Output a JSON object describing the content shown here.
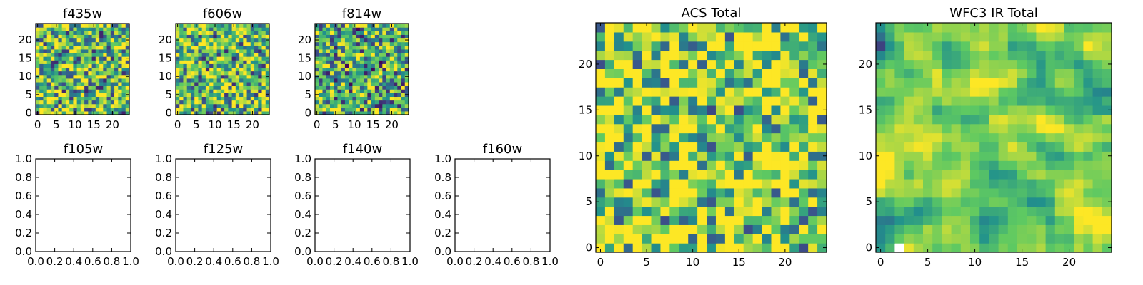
{
  "chart_data": {
    "type": "heatmap",
    "colormap": "viridis",
    "colormap_stops": [
      "#440154",
      "#3b528b",
      "#21918c",
      "#5ec962",
      "#fde725"
    ],
    "panels": [
      {
        "id": "f435w",
        "title": "f435w",
        "has_image": true,
        "grid_size": 25,
        "xlim": [
          -0.5,
          24.5
        ],
        "ylim": [
          -0.5,
          24.5
        ],
        "xticks": [
          0,
          5,
          10,
          15,
          20
        ],
        "yticks": [
          0,
          5,
          10,
          15,
          20
        ],
        "xtick_labels": [
          "0",
          "5",
          "10",
          "15",
          "20"
        ],
        "ytick_labels": [
          "0",
          "5",
          "10",
          "15",
          "20"
        ],
        "seed": 11,
        "smooth": 0,
        "bias": 0.1
      },
      {
        "id": "f606w",
        "title": "f606w",
        "has_image": true,
        "grid_size": 25,
        "xlim": [
          -0.5,
          24.5
        ],
        "ylim": [
          -0.5,
          24.5
        ],
        "xticks": [
          0,
          5,
          10,
          15,
          20
        ],
        "yticks": [
          0,
          5,
          10,
          15,
          20
        ],
        "xtick_labels": [
          "0",
          "5",
          "10",
          "15",
          "20"
        ],
        "ytick_labels": [
          "0",
          "5",
          "10",
          "15",
          "20"
        ],
        "seed": 23,
        "smooth": 0,
        "bias": 0.12
      },
      {
        "id": "f814w",
        "title": "f814w",
        "has_image": true,
        "grid_size": 25,
        "xlim": [
          -0.5,
          24.5
        ],
        "ylim": [
          -0.5,
          24.5
        ],
        "xticks": [
          0,
          5,
          10,
          15,
          20
        ],
        "yticks": [
          0,
          5,
          10,
          15,
          20
        ],
        "xtick_labels": [
          "0",
          "5",
          "10",
          "15",
          "20"
        ],
        "ytick_labels": [
          "0",
          "5",
          "10",
          "15",
          "20"
        ],
        "seed": 37,
        "smooth": 0,
        "bias": 0.05
      },
      {
        "id": "f105w",
        "title": "f105w",
        "has_image": false,
        "xlim": [
          0,
          1
        ],
        "ylim": [
          0,
          1
        ],
        "xticks": [
          0,
          0.2,
          0.4,
          0.6,
          0.8,
          1.0
        ],
        "yticks": [
          0,
          0.2,
          0.4,
          0.6,
          0.8,
          1.0
        ],
        "xtick_labels": [
          "0.0",
          "0.2",
          "0.4",
          "0.6",
          "0.8",
          "1.0"
        ],
        "ytick_labels": [
          "0.0",
          "0.2",
          "0.4",
          "0.6",
          "0.8",
          "1.0"
        ]
      },
      {
        "id": "f125w",
        "title": "f125w",
        "has_image": false,
        "xlim": [
          0,
          1
        ],
        "ylim": [
          0,
          1
        ],
        "xticks": [
          0,
          0.2,
          0.4,
          0.6,
          0.8,
          1.0
        ],
        "yticks": [
          0,
          0.2,
          0.4,
          0.6,
          0.8,
          1.0
        ],
        "xtick_labels": [
          "0.0",
          "0.2",
          "0.4",
          "0.6",
          "0.8",
          "1.0"
        ],
        "ytick_labels": [
          "0.0",
          "0.2",
          "0.4",
          "0.6",
          "0.8",
          "1.0"
        ]
      },
      {
        "id": "f140w",
        "title": "f140w",
        "has_image": false,
        "xlim": [
          0,
          1
        ],
        "ylim": [
          0,
          1
        ],
        "xticks": [
          0,
          0.2,
          0.4,
          0.6,
          0.8,
          1.0
        ],
        "yticks": [
          0,
          0.2,
          0.4,
          0.6,
          0.8,
          1.0
        ],
        "xtick_labels": [
          "0.0",
          "0.2",
          "0.4",
          "0.6",
          "0.8",
          "1.0"
        ],
        "ytick_labels": [
          "0.0",
          "0.2",
          "0.4",
          "0.6",
          "0.8",
          "1.0"
        ]
      },
      {
        "id": "f160w",
        "title": "f160w",
        "has_image": false,
        "xlim": [
          0,
          1
        ],
        "ylim": [
          0,
          1
        ],
        "xticks": [
          0,
          0.2,
          0.4,
          0.6,
          0.8,
          1.0
        ],
        "yticks": [
          0,
          0.2,
          0.4,
          0.6,
          0.8,
          1.0
        ],
        "xtick_labels": [
          "0.0",
          "0.2",
          "0.4",
          "0.6",
          "0.8",
          "1.0"
        ],
        "ytick_labels": [
          "0.0",
          "0.2",
          "0.4",
          "0.6",
          "0.8",
          "1.0"
        ]
      },
      {
        "id": "acs_total",
        "title": "ACS Total",
        "has_image": true,
        "grid_size": 25,
        "xlim": [
          -0.5,
          24.5
        ],
        "ylim": [
          -0.5,
          24.5
        ],
        "xticks": [
          0,
          5,
          10,
          15,
          20
        ],
        "yticks": [
          0,
          5,
          10,
          15,
          20
        ],
        "xtick_labels": [
          "0",
          "5",
          "10",
          "15",
          "20"
        ],
        "ytick_labels": [
          "0",
          "5",
          "10",
          "15",
          "20"
        ],
        "seed": 51,
        "smooth": 0,
        "bias": 0.22
      },
      {
        "id": "wfc3_ir_total",
        "title": "WFC3 IR Total",
        "has_image": true,
        "grid_size": 25,
        "xlim": [
          -0.5,
          24.5
        ],
        "ylim": [
          -0.5,
          24.5
        ],
        "xticks": [
          0,
          5,
          10,
          15,
          20
        ],
        "yticks": [
          0,
          5,
          10,
          15,
          20
        ],
        "xtick_labels": [
          "0",
          "5",
          "10",
          "15",
          "20"
        ],
        "ytick_labels": [
          "0",
          "5",
          "10",
          "15",
          "20"
        ],
        "seed": 73,
        "smooth": 1,
        "bias": 0.2,
        "blank_cells": [
          [
            2,
            0
          ]
        ]
      }
    ]
  }
}
